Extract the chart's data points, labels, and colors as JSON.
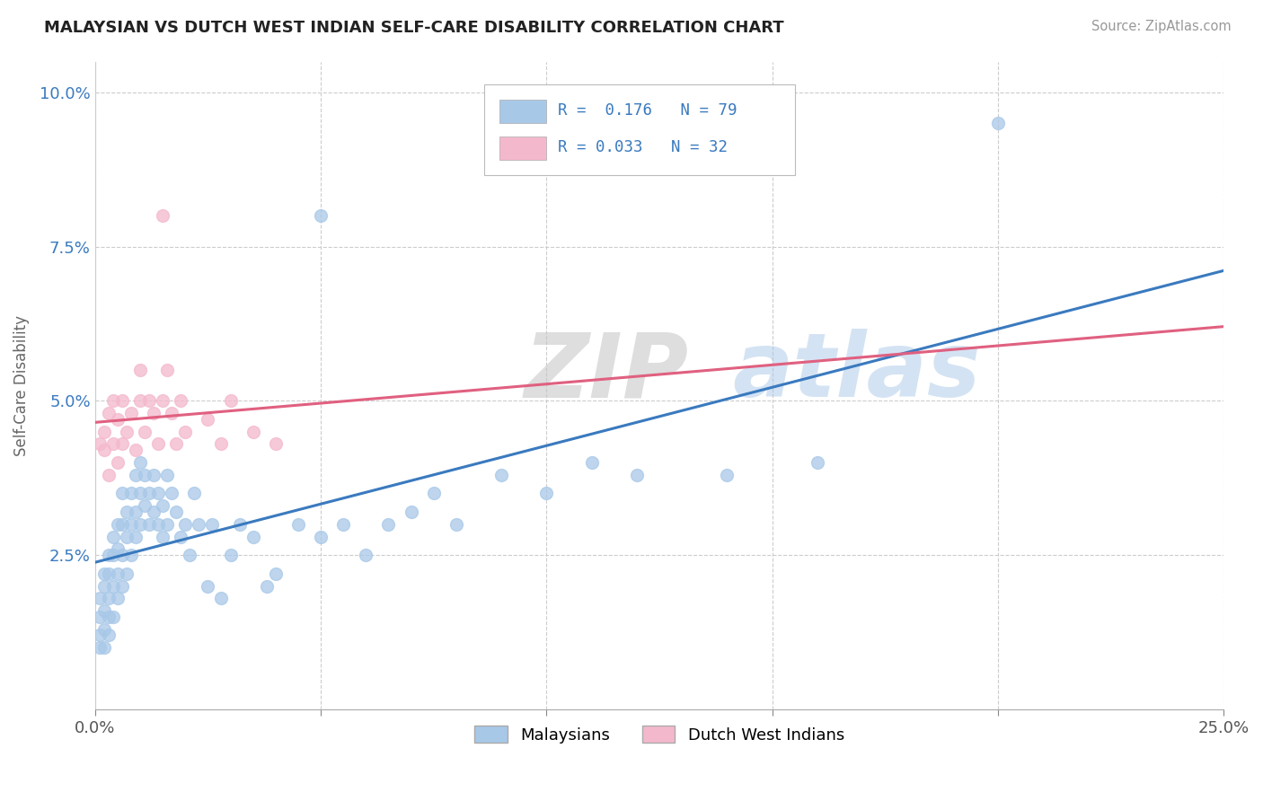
{
  "title": "MALAYSIAN VS DUTCH WEST INDIAN SELF-CARE DISABILITY CORRELATION CHART",
  "source": "Source: ZipAtlas.com",
  "ylabel": "Self-Care Disability",
  "xlim": [
    0.0,
    0.25
  ],
  "ylim": [
    0.0,
    0.105
  ],
  "blue_color": "#a8c8e8",
  "pink_color": "#f4b8cc",
  "blue_line_color": "#3a7abf",
  "pink_line_color": "#e06080",
  "watermark_zip": "ZIP",
  "watermark_atlas": "atlas",
  "malaysians": [
    [
      0.001,
      0.01
    ],
    [
      0.001,
      0.012
    ],
    [
      0.001,
      0.015
    ],
    [
      0.001,
      0.018
    ],
    [
      0.002,
      0.01
    ],
    [
      0.002,
      0.013
    ],
    [
      0.002,
      0.016
    ],
    [
      0.002,
      0.02
    ],
    [
      0.002,
      0.022
    ],
    [
      0.003,
      0.012
    ],
    [
      0.003,
      0.015
    ],
    [
      0.003,
      0.018
    ],
    [
      0.003,
      0.022
    ],
    [
      0.003,
      0.025
    ],
    [
      0.004,
      0.015
    ],
    [
      0.004,
      0.02
    ],
    [
      0.004,
      0.025
    ],
    [
      0.004,
      0.028
    ],
    [
      0.005,
      0.018
    ],
    [
      0.005,
      0.022
    ],
    [
      0.005,
      0.026
    ],
    [
      0.005,
      0.03
    ],
    [
      0.006,
      0.02
    ],
    [
      0.006,
      0.025
    ],
    [
      0.006,
      0.03
    ],
    [
      0.006,
      0.035
    ],
    [
      0.007,
      0.022
    ],
    [
      0.007,
      0.028
    ],
    [
      0.007,
      0.032
    ],
    [
      0.008,
      0.025
    ],
    [
      0.008,
      0.03
    ],
    [
      0.008,
      0.035
    ],
    [
      0.009,
      0.028
    ],
    [
      0.009,
      0.032
    ],
    [
      0.009,
      0.038
    ],
    [
      0.01,
      0.03
    ],
    [
      0.01,
      0.035
    ],
    [
      0.01,
      0.04
    ],
    [
      0.011,
      0.033
    ],
    [
      0.011,
      0.038
    ],
    [
      0.012,
      0.03
    ],
    [
      0.012,
      0.035
    ],
    [
      0.013,
      0.032
    ],
    [
      0.013,
      0.038
    ],
    [
      0.014,
      0.03
    ],
    [
      0.014,
      0.035
    ],
    [
      0.015,
      0.028
    ],
    [
      0.015,
      0.033
    ],
    [
      0.016,
      0.03
    ],
    [
      0.016,
      0.038
    ],
    [
      0.017,
      0.035
    ],
    [
      0.018,
      0.032
    ],
    [
      0.019,
      0.028
    ],
    [
      0.02,
      0.03
    ],
    [
      0.021,
      0.025
    ],
    [
      0.022,
      0.035
    ],
    [
      0.023,
      0.03
    ],
    [
      0.025,
      0.02
    ],
    [
      0.026,
      0.03
    ],
    [
      0.028,
      0.018
    ],
    [
      0.03,
      0.025
    ],
    [
      0.032,
      0.03
    ],
    [
      0.035,
      0.028
    ],
    [
      0.038,
      0.02
    ],
    [
      0.04,
      0.022
    ],
    [
      0.045,
      0.03
    ],
    [
      0.05,
      0.028
    ],
    [
      0.055,
      0.03
    ],
    [
      0.06,
      0.025
    ],
    [
      0.065,
      0.03
    ],
    [
      0.07,
      0.032
    ],
    [
      0.075,
      0.035
    ],
    [
      0.08,
      0.03
    ],
    [
      0.09,
      0.038
    ],
    [
      0.1,
      0.035
    ],
    [
      0.11,
      0.04
    ],
    [
      0.12,
      0.038
    ],
    [
      0.14,
      0.038
    ],
    [
      0.16,
      0.04
    ],
    [
      0.05,
      0.08
    ],
    [
      0.2,
      0.095
    ]
  ],
  "dutch_west_indians": [
    [
      0.001,
      0.043
    ],
    [
      0.002,
      0.042
    ],
    [
      0.002,
      0.045
    ],
    [
      0.003,
      0.038
    ],
    [
      0.003,
      0.048
    ],
    [
      0.004,
      0.043
    ],
    [
      0.004,
      0.05
    ],
    [
      0.005,
      0.04
    ],
    [
      0.005,
      0.047
    ],
    [
      0.006,
      0.043
    ],
    [
      0.006,
      0.05
    ],
    [
      0.007,
      0.045
    ],
    [
      0.008,
      0.048
    ],
    [
      0.009,
      0.042
    ],
    [
      0.01,
      0.05
    ],
    [
      0.01,
      0.055
    ],
    [
      0.011,
      0.045
    ],
    [
      0.012,
      0.05
    ],
    [
      0.013,
      0.048
    ],
    [
      0.014,
      0.043
    ],
    [
      0.015,
      0.05
    ],
    [
      0.016,
      0.055
    ],
    [
      0.017,
      0.048
    ],
    [
      0.018,
      0.043
    ],
    [
      0.019,
      0.05
    ],
    [
      0.02,
      0.045
    ],
    [
      0.025,
      0.047
    ],
    [
      0.028,
      0.043
    ],
    [
      0.03,
      0.05
    ],
    [
      0.035,
      0.045
    ],
    [
      0.04,
      0.043
    ],
    [
      0.015,
      0.08
    ]
  ]
}
